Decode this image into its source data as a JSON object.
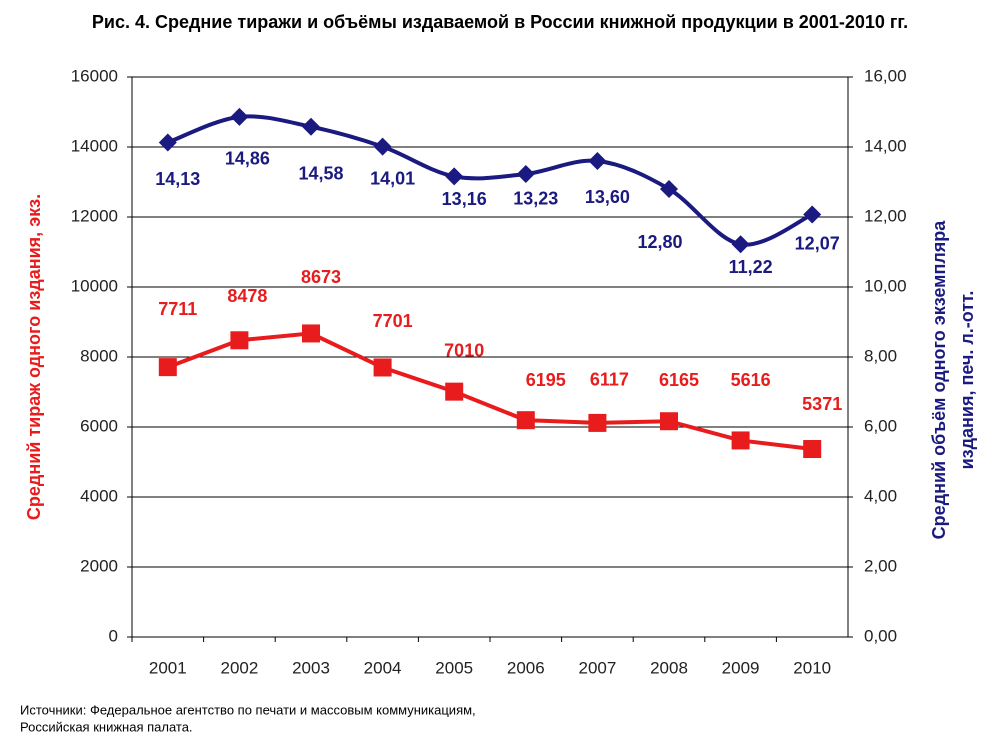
{
  "chart_data": {
    "type": "line",
    "title": "Рис. 4. Средние тиражи и объёмы издаваемой в России книжной продукции в 2001-2010 гг.",
    "ylabel": "Средний тираж одного издания, экз.",
    "y2label": [
      "Средний объём одного экземпляра",
      "издания, печ. л.-отт."
    ],
    "note": [
      "Источники: Федеральное агентство по печати и массовым коммуникациям,",
      "Российская книжная палата."
    ],
    "categories": [
      "2001",
      "2002",
      "2003",
      "2004",
      "2005",
      "2006",
      "2007",
      "2008",
      "2009",
      "2010"
    ],
    "series": [
      {
        "name": "Средний тираж",
        "color": "#e81c1c",
        "marker": "square",
        "smooth": false,
        "values": [
          7711,
          8478,
          8673,
          7701,
          7010,
          6195,
          6117,
          6165,
          5616,
          5371
        ]
      },
      {
        "name": "Средний объём",
        "color": "#1a1a80",
        "marker": "diamond",
        "smooth": true,
        "axis": "y2",
        "values": [
          14.13,
          14.86,
          14.58,
          14.01,
          13.16,
          13.23,
          13.6,
          12.8,
          11.22,
          12.07
        ],
        "value_labels": [
          "14,13",
          "14,86",
          "14,58",
          "14,01",
          "13,16",
          "13,23",
          "13,60",
          "12,80",
          "11,22",
          "12,07"
        ]
      }
    ],
    "ylim": [
      0,
      16000
    ],
    "yticks": [
      0,
      2000,
      4000,
      6000,
      8000,
      10000,
      12000,
      14000,
      16000
    ],
    "y2lim": [
      0,
      16
    ],
    "y2ticks": [
      {
        "value": 0,
        "label": "0,00"
      },
      {
        "value": 2,
        "label": "2,00"
      },
      {
        "value": 4,
        "label": "4,00"
      },
      {
        "value": 6,
        "label": "6,00"
      },
      {
        "value": 8,
        "label": "8,00"
      },
      {
        "value": 10,
        "label": "10,00"
      },
      {
        "value": 12,
        "label": "12,00"
      },
      {
        "value": 14,
        "label": "14,00"
      },
      {
        "value": 16,
        "label": "16,00"
      }
    ],
    "grid": true
  }
}
